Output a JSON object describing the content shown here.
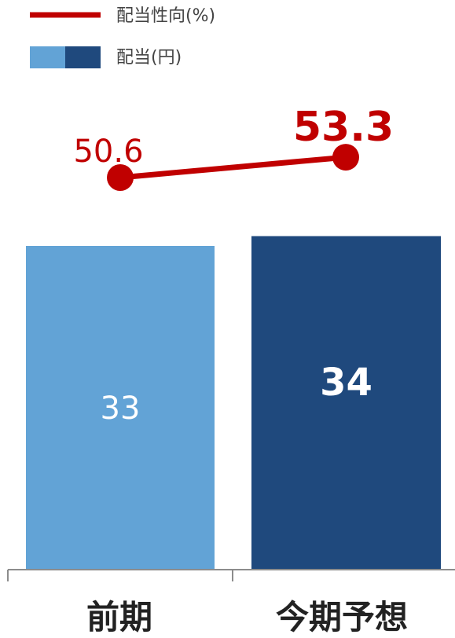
{
  "chart_data": {
    "type": "bar",
    "categories": [
      "前期",
      "今期予想"
    ],
    "series": [
      {
        "name": "配当(円)",
        "kind": "bar",
        "values": [
          33,
          34
        ],
        "labels": [
          "33",
          "34"
        ],
        "colors": [
          "#62a3d6",
          "#1f497d"
        ]
      },
      {
        "name": "配当性向(%)",
        "kind": "line",
        "values": [
          50.6,
          53.3
        ],
        "labels": [
          "50.6",
          "53.3"
        ],
        "color": "#c00000"
      }
    ],
    "legend_position": "top-left",
    "grid": false
  }
}
